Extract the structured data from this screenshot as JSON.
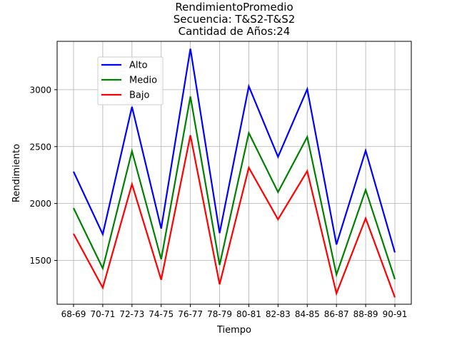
{
  "chart_data": {
    "type": "line",
    "title_lines": [
      "RendimientoPromedio",
      "Secuencia: T&S2-T&S2",
      "Cantidad de Años:24"
    ],
    "xlabel": "Tiempo",
    "ylabel": "Rendimiento",
    "categories": [
      "68-69",
      "70-71",
      "72-73",
      "74-75",
      "76-77",
      "78-79",
      "80-81",
      "82-83",
      "84-85",
      "86-87",
      "88-89",
      "90-91"
    ],
    "yticks": [
      1500,
      2000,
      2500,
      3000
    ],
    "ylim": [
      1115,
      3425
    ],
    "grid": true,
    "legend_position": "upper-left",
    "series": [
      {
        "name": "Alto",
        "color": "#0000ff",
        "values": [
          2280,
          1730,
          2850,
          1780,
          3360,
          1740,
          3030,
          2410,
          3005,
          1640,
          2465,
          1570
        ]
      },
      {
        "name": "Medio",
        "color": "#008000",
        "values": [
          1960,
          1430,
          2460,
          1510,
          2940,
          1460,
          2620,
          2100,
          2585,
          1375,
          2120,
          1335
        ]
      },
      {
        "name": "Bajo",
        "color": "#ff0000",
        "values": [
          1735,
          1260,
          2170,
          1330,
          2600,
          1290,
          2315,
          1860,
          2285,
          1210,
          1870,
          1175
        ]
      }
    ]
  }
}
